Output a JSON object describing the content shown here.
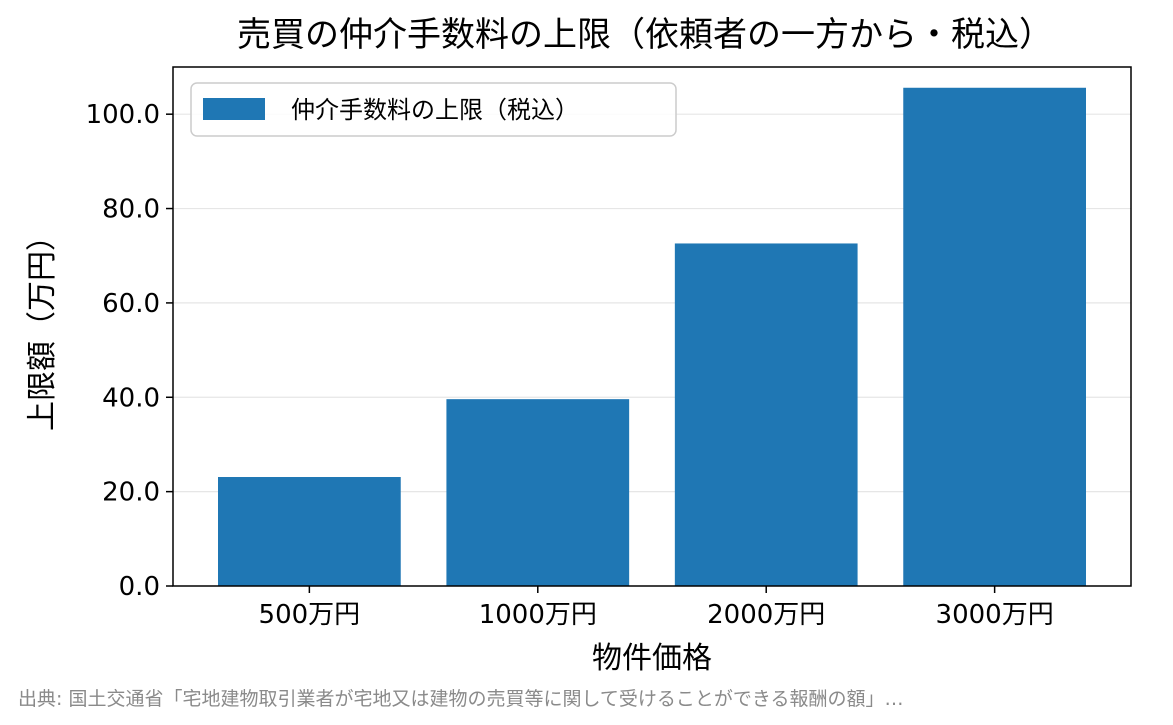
{
  "chart_data": {
    "type": "bar",
    "title": "売買の仲介手数料の上限（依頼者の一方から・税込）",
    "xlabel": "物件価格",
    "ylabel": "上限額（万円）",
    "categories": [
      "500万円",
      "1000万円",
      "2000万円",
      "3000万円"
    ],
    "series": [
      {
        "name": "仲介手数料の上限（税込）",
        "values": [
          23.1,
          39.6,
          72.6,
          105.6
        ]
      }
    ],
    "ylim": [
      0,
      110
    ],
    "yticks": [
      "0.0",
      "20.0",
      "40.0",
      "60.0",
      "80.0",
      "100.0"
    ],
    "grid": "horizontal",
    "legend": "top-left",
    "bar_color": "#1f77b4",
    "source": "出典: 国土交通省「宅地建物取引業者が宅地又は建物の売買等に関して受けることができる報酬の額」…"
  }
}
